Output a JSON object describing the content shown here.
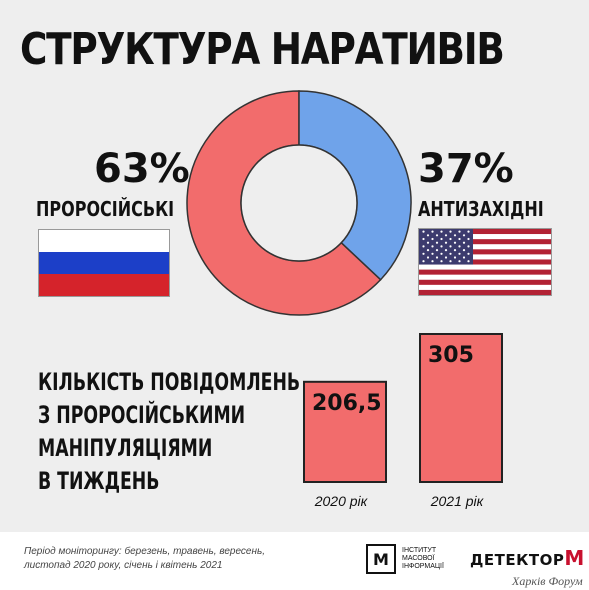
{
  "title": "СТРУКТУРА НАРАТИВІВ",
  "colors": {
    "pro_russian": "#f26c6c",
    "anti_western": "#6fa3ea",
    "background": "#eeeeee"
  },
  "left": {
    "percent": "63%",
    "label": "ПРОРОСІЙСЬКІ",
    "flag": "russia-flag"
  },
  "right": {
    "percent": "37%",
    "label": "АНТИЗАХІДНІ",
    "flag": "usa-flag"
  },
  "headline": [
    "КІЛЬКІСТЬ ПОВІДОМЛЕНЬ",
    "З ПРОРОСІЙСЬКИМИ",
    "МАНІПУЛЯЦІЯМИ",
    "В ТИЖДЕНЬ"
  ],
  "footer": {
    "period_line1": "Період моніторингу: березень, травень, вересень,",
    "period_line2": "листопад 2020 року, січень і квітень 2021",
    "imi_name": "ІНСТИТУТ МАСОВОЇ ІНФОРМАЦІЇ",
    "imi_mark": "М",
    "detector_text": "ДЕТЕКТОР",
    "detector_m": "M",
    "kharkiv": "Харків Форум"
  },
  "chart_data": [
    {
      "type": "pie",
      "categories": [
        "ПРОРОСІЙСЬКІ",
        "АНТИЗАХІДНІ"
      ],
      "values": [
        63,
        37
      ],
      "labels": [
        "63%",
        "37%"
      ],
      "colors": [
        "#f26c6c",
        "#6fa3ea"
      ],
      "title": "СТРУКТУРА НАРАТИВІВ"
    },
    {
      "type": "bar",
      "categories": [
        "2020 рік",
        "2021 рік"
      ],
      "values": [
        206.5,
        305
      ],
      "data_labels": [
        "206,5",
        "305"
      ],
      "color": "#f26c6c",
      "ylim": [
        0,
        305
      ]
    }
  ]
}
